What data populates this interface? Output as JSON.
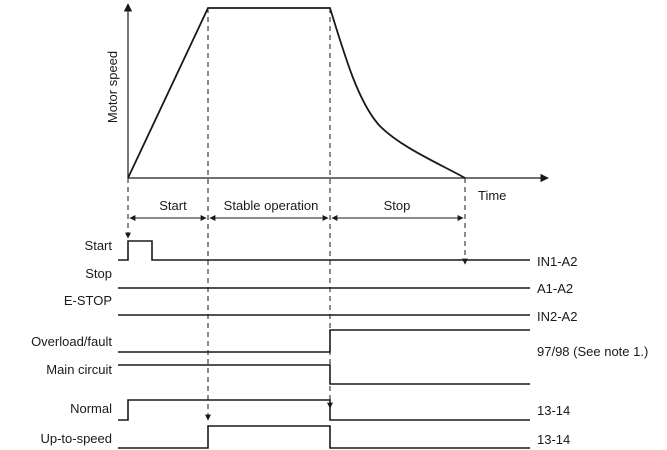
{
  "axes": {
    "y_label": "Motor speed",
    "x_label": "Time"
  },
  "phases": {
    "start": "Start",
    "stable": "Stable operation",
    "stop": "Stop"
  },
  "signals": [
    {
      "name": "Start",
      "terminal": "IN1-A2"
    },
    {
      "name": "Stop",
      "terminal": "A1-A2"
    },
    {
      "name": "E-STOP",
      "terminal": "IN2-A2"
    },
    {
      "name": "Overload/fault",
      "terminal": "97/98 (See note 1.)"
    },
    {
      "name": "Main circuit",
      "terminal": ""
    },
    {
      "name": "Normal",
      "terminal": "13-14"
    },
    {
      "name": "Up-to-speed",
      "terminal": "13-14"
    }
  ]
}
